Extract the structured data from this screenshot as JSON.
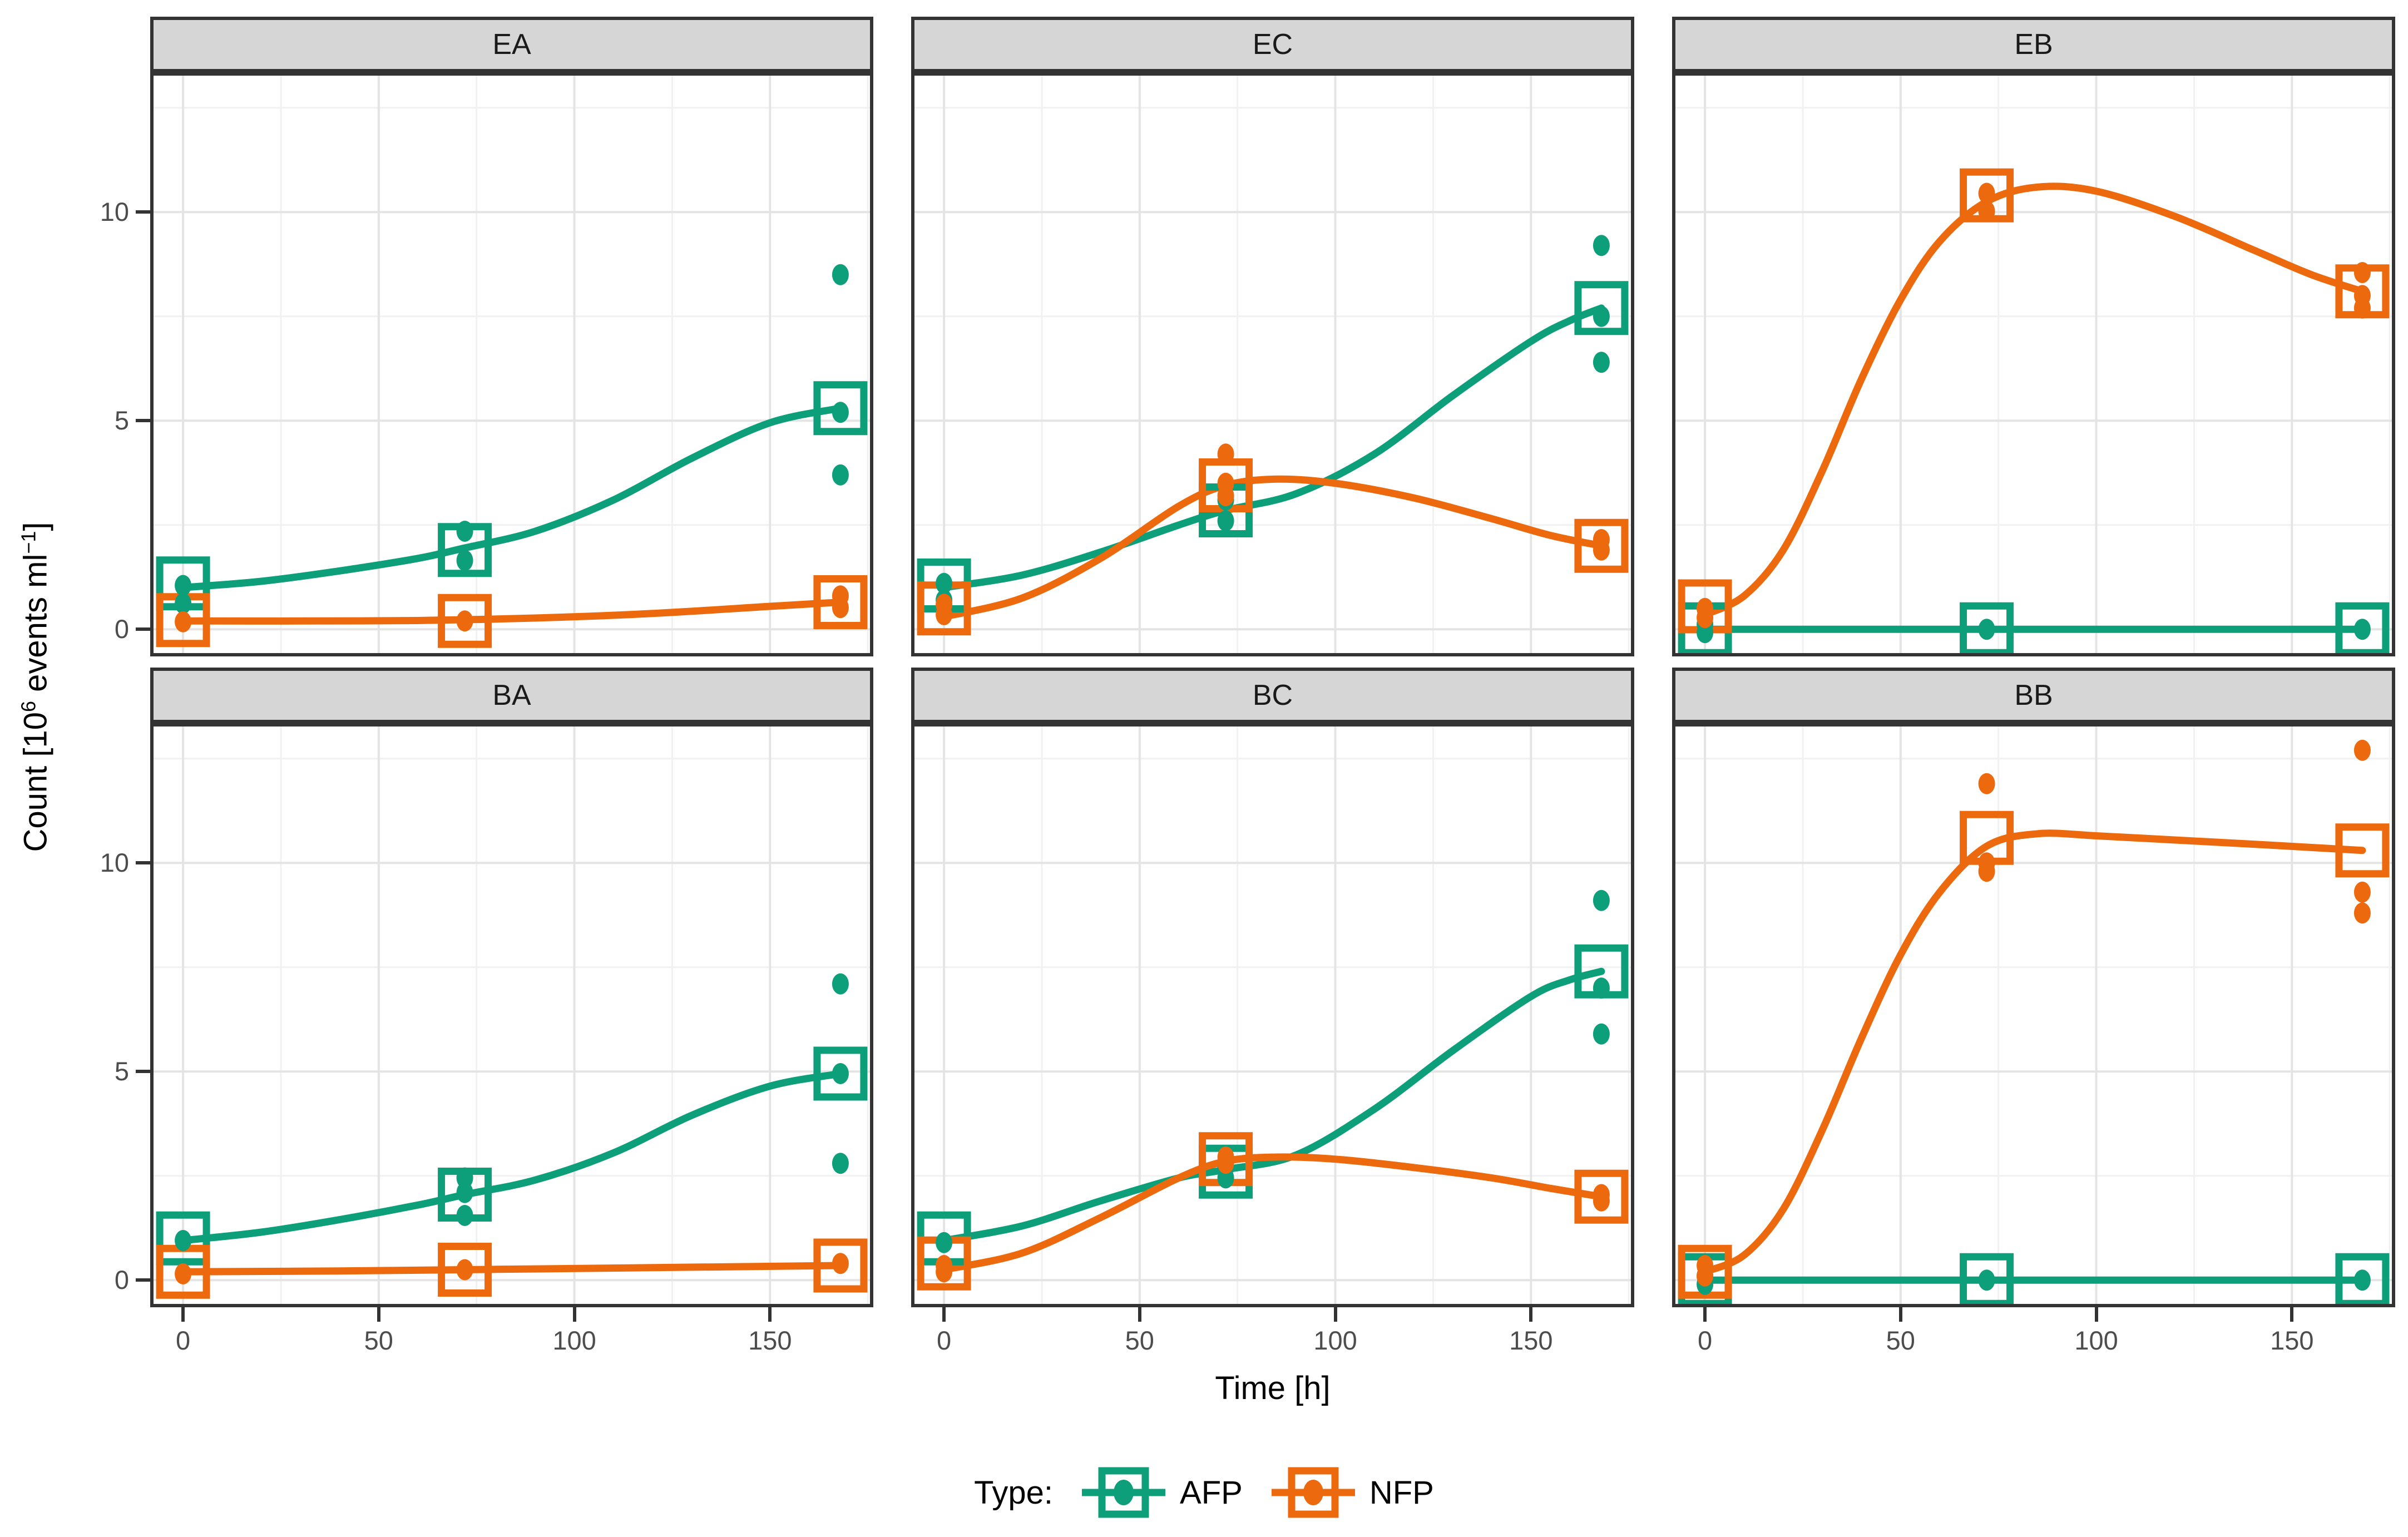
{
  "chart_data": {
    "type": "line",
    "description": "Faceted scatter/line chart of cell counts over time; open squares = means, small dots = replicates, smooth trend lines per series",
    "xlabel": "Time [h]",
    "ylabel_parts": {
      "pre": "Count [10",
      "sup1": "6",
      "mid": " events ml",
      "sup2": "−1",
      "post": "]"
    },
    "axes": {
      "x_ticks": [
        "0",
        "50",
        "100",
        "150"
      ],
      "x_tick_values": [
        0,
        50,
        100,
        150
      ],
      "x_minor": [
        25,
        75,
        125,
        175
      ],
      "xlim": [
        -8.4,
        176.4
      ],
      "y_ticks": [
        "0",
        "5",
        "10"
      ],
      "y_tick_values": [
        0,
        5,
        10
      ],
      "y_minor": [
        2.5,
        7.5,
        12.5
      ],
      "ylim": [
        -0.65,
        13.35
      ],
      "grid": "major-and-minor"
    },
    "legend": {
      "title": "Type:",
      "items": [
        {
          "label": "AFP",
          "color": "#0d9e7a"
        },
        {
          "label": "NFP",
          "color": "#ec6a0d"
        }
      ],
      "position": "bottom"
    },
    "series_colors": {
      "AFP": "#0d9e7a",
      "NFP": "#ec6a0d"
    },
    "facets": [
      {
        "label": "EA",
        "series": [
          {
            "name": "AFP",
            "squares": [
              [
                0,
                1.1
              ],
              [
                72,
                1.9
              ],
              [
                168,
                5.3
              ]
            ],
            "dots": [
              [
                0,
                1.05
              ],
              [
                0,
                0.62
              ],
              [
                72,
                2.35
              ],
              [
                72,
                1.65
              ],
              [
                168,
                8.5
              ],
              [
                168,
                5.2
              ],
              [
                168,
                3.7
              ]
            ],
            "curve": [
              [
                0,
                1.0
              ],
              [
                20,
                1.15
              ],
              [
                40,
                1.4
              ],
              [
                60,
                1.7
              ],
              [
                72,
                1.95
              ],
              [
                90,
                2.35
              ],
              [
                110,
                3.1
              ],
              [
                130,
                4.1
              ],
              [
                150,
                4.95
              ],
              [
                168,
                5.3
              ]
            ]
          },
          {
            "name": "NFP",
            "squares": [
              [
                0,
                0.22
              ],
              [
                72,
                0.2
              ],
              [
                168,
                0.65
              ]
            ],
            "dots": [
              [
                0,
                0.18
              ],
              [
                72,
                0.2
              ],
              [
                168,
                0.8
              ],
              [
                168,
                0.52
              ]
            ],
            "curve": [
              [
                0,
                0.2
              ],
              [
                30,
                0.2
              ],
              [
                60,
                0.21
              ],
              [
                90,
                0.27
              ],
              [
                120,
                0.38
              ],
              [
                150,
                0.55
              ],
              [
                168,
                0.65
              ]
            ]
          }
        ]
      },
      {
        "label": "EC",
        "series": [
          {
            "name": "AFP",
            "squares": [
              [
                0,
                1.05
              ],
              [
                72,
                2.85
              ],
              [
                168,
                7.7
              ]
            ],
            "dots": [
              [
                0,
                1.1
              ],
              [
                0,
                0.7
              ],
              [
                72,
                3.1
              ],
              [
                72,
                2.6
              ],
              [
                168,
                9.2
              ],
              [
                168,
                7.5
              ],
              [
                168,
                6.4
              ]
            ],
            "curve": [
              [
                0,
                1.0
              ],
              [
                20,
                1.3
              ],
              [
                40,
                1.85
              ],
              [
                60,
                2.5
              ],
              [
                72,
                2.85
              ],
              [
                90,
                3.25
              ],
              [
                110,
                4.2
              ],
              [
                130,
                5.6
              ],
              [
                150,
                6.9
              ],
              [
                160,
                7.4
              ],
              [
                168,
                7.7
              ]
            ]
          },
          {
            "name": "NFP",
            "squares": [
              [
                0,
                0.5
              ],
              [
                72,
                3.45
              ],
              [
                168,
                2.0
              ]
            ],
            "dots": [
              [
                0,
                0.6
              ],
              [
                0,
                0.35
              ],
              [
                72,
                4.2
              ],
              [
                72,
                3.5
              ],
              [
                72,
                3.2
              ],
              [
                168,
                2.15
              ],
              [
                168,
                1.9
              ]
            ],
            "curve": [
              [
                0,
                0.3
              ],
              [
                20,
                0.75
              ],
              [
                40,
                1.7
              ],
              [
                60,
                2.95
              ],
              [
                72,
                3.45
              ],
              [
                85,
                3.6
              ],
              [
                100,
                3.5
              ],
              [
                120,
                3.15
              ],
              [
                140,
                2.65
              ],
              [
                155,
                2.25
              ],
              [
                168,
                2.0
              ]
            ]
          }
        ]
      },
      {
        "label": "EB",
        "series": [
          {
            "name": "AFP",
            "squares": [
              [
                0,
                0
              ],
              [
                72,
                0
              ],
              [
                168,
                0
              ]
            ],
            "dots": [
              [
                0,
                0.12
              ],
              [
                0,
                -0.08
              ],
              [
                72,
                0.0
              ],
              [
                168,
                0.0
              ]
            ],
            "curve": [
              [
                0,
                0
              ],
              [
                168,
                0
              ]
            ]
          },
          {
            "name": "NFP",
            "squares": [
              [
                0,
                0.55
              ],
              [
                72,
                10.4
              ],
              [
                168,
                8.1
              ]
            ],
            "dots": [
              [
                0,
                0.5
              ],
              [
                0,
                0.28
              ],
              [
                72,
                10.45
              ],
              [
                72,
                10.02
              ],
              [
                168,
                8.55
              ],
              [
                168,
                8.0
              ],
              [
                168,
                7.7
              ]
            ],
            "curve": [
              [
                0,
                0.35
              ],
              [
                10,
                0.8
              ],
              [
                20,
                1.9
              ],
              [
                30,
                3.8
              ],
              [
                40,
                6.0
              ],
              [
                50,
                7.9
              ],
              [
                60,
                9.3
              ],
              [
                72,
                10.25
              ],
              [
                85,
                10.6
              ],
              [
                100,
                10.5
              ],
              [
                120,
                9.9
              ],
              [
                140,
                9.1
              ],
              [
                155,
                8.5
              ],
              [
                168,
                8.1
              ]
            ]
          }
        ]
      },
      {
        "label": "BA",
        "series": [
          {
            "name": "AFP",
            "squares": [
              [
                0,
                1.0
              ],
              [
                72,
                2.05
              ],
              [
                168,
                4.95
              ]
            ],
            "dots": [
              [
                0,
                0.95
              ],
              [
                72,
                2.45
              ],
              [
                72,
                2.1
              ],
              [
                72,
                1.55
              ],
              [
                168,
                7.1
              ],
              [
                168,
                4.95
              ],
              [
                168,
                2.8
              ]
            ],
            "curve": [
              [
                0,
                0.95
              ],
              [
                20,
                1.15
              ],
              [
                40,
                1.45
              ],
              [
                60,
                1.8
              ],
              [
                72,
                2.05
              ],
              [
                90,
                2.4
              ],
              [
                110,
                3.05
              ],
              [
                130,
                3.95
              ],
              [
                150,
                4.65
              ],
              [
                168,
                4.95
              ]
            ]
          },
          {
            "name": "NFP",
            "squares": [
              [
                0,
                0.2
              ],
              [
                72,
                0.25
              ],
              [
                168,
                0.35
              ]
            ],
            "dots": [
              [
                0,
                0.15
              ],
              [
                72,
                0.25
              ],
              [
                168,
                0.4
              ]
            ],
            "curve": [
              [
                0,
                0.2
              ],
              [
                40,
                0.22
              ],
              [
                80,
                0.26
              ],
              [
                120,
                0.3
              ],
              [
                168,
                0.35
              ]
            ]
          }
        ]
      },
      {
        "label": "BC",
        "series": [
          {
            "name": "AFP",
            "squares": [
              [
                0,
                1.0
              ],
              [
                72,
                2.6
              ],
              [
                168,
                7.4
              ]
            ],
            "dots": [
              [
                0,
                0.9
              ],
              [
                72,
                2.7
              ],
              [
                72,
                2.45
              ],
              [
                168,
                9.1
              ],
              [
                168,
                7.0
              ],
              [
                168,
                5.9
              ]
            ],
            "curve": [
              [
                0,
                0.95
              ],
              [
                20,
                1.3
              ],
              [
                40,
                1.9
              ],
              [
                60,
                2.45
              ],
              [
                72,
                2.65
              ],
              [
                90,
                3.0
              ],
              [
                110,
                4.1
              ],
              [
                130,
                5.5
              ],
              [
                150,
                6.8
              ],
              [
                160,
                7.2
              ],
              [
                168,
                7.4
              ]
            ]
          },
          {
            "name": "NFP",
            "squares": [
              [
                0,
                0.4
              ],
              [
                72,
                2.9
              ],
              [
                168,
                2.0
              ]
            ],
            "dots": [
              [
                0,
                0.35
              ],
              [
                0,
                0.2
              ],
              [
                72,
                2.95
              ],
              [
                72,
                2.8
              ],
              [
                168,
                2.05
              ],
              [
                168,
                1.9
              ]
            ],
            "curve": [
              [
                0,
                0.25
              ],
              [
                20,
                0.65
              ],
              [
                40,
                1.5
              ],
              [
                60,
                2.45
              ],
              [
                72,
                2.85
              ],
              [
                85,
                2.95
              ],
              [
                100,
                2.9
              ],
              [
                120,
                2.7
              ],
              [
                140,
                2.45
              ],
              [
                155,
                2.2
              ],
              [
                168,
                2.0
              ]
            ]
          }
        ]
      },
      {
        "label": "BB",
        "series": [
          {
            "name": "AFP",
            "squares": [
              [
                0,
                0
              ],
              [
                72,
                0
              ],
              [
                168,
                0
              ]
            ],
            "dots": [
              [
                0,
                0.1
              ],
              [
                0,
                -0.1
              ],
              [
                72,
                0.0
              ],
              [
                168,
                0.0
              ]
            ],
            "curve": [
              [
                0,
                0
              ],
              [
                168,
                0
              ]
            ]
          },
          {
            "name": "NFP",
            "squares": [
              [
                0,
                0.2
              ],
              [
                72,
                10.6
              ],
              [
                168,
                10.3
              ]
            ],
            "dots": [
              [
                0,
                0.35
              ],
              [
                0,
                0.1
              ],
              [
                72,
                11.9
              ],
              [
                72,
                10.0
              ],
              [
                72,
                9.8
              ],
              [
                168,
                12.7
              ],
              [
                168,
                9.3
              ],
              [
                168,
                8.8
              ]
            ],
            "curve": [
              [
                0,
                0.2
              ],
              [
                10,
                0.6
              ],
              [
                20,
                1.7
              ],
              [
                30,
                3.6
              ],
              [
                40,
                5.8
              ],
              [
                50,
                7.8
              ],
              [
                60,
                9.3
              ],
              [
                72,
                10.4
              ],
              [
                85,
                10.7
              ],
              [
                100,
                10.65
              ],
              [
                120,
                10.55
              ],
              [
                140,
                10.45
              ],
              [
                168,
                10.3
              ]
            ]
          }
        ]
      }
    ],
    "style": {
      "strip_bg": "#d6d6d6",
      "panel_border": "#333333",
      "grid_major": "#e4e4e4",
      "grid_minor": "#f1f1f1",
      "tick_text": "#4d4d4d"
    }
  }
}
